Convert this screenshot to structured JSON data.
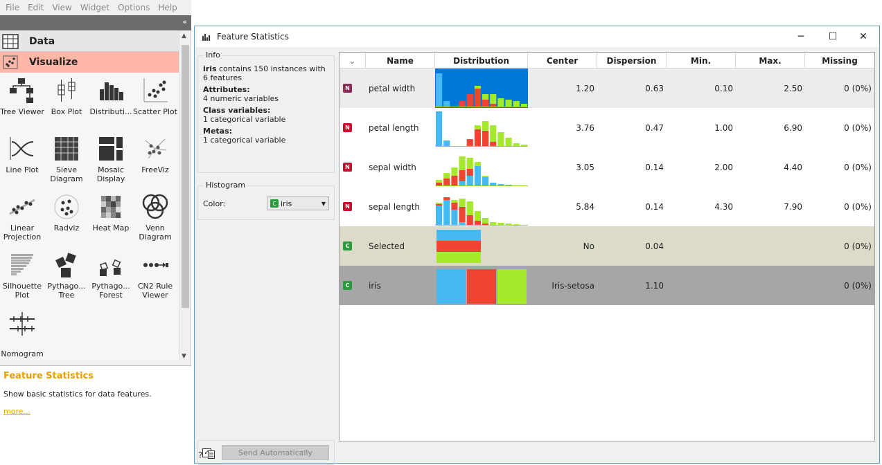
{
  "menubar": {
    "items": [
      "File",
      "Edit",
      "View",
      "Widget",
      "Options",
      "Help"
    ]
  },
  "left_panel": {
    "collapse_label": "«",
    "categories": [
      {
        "label": "Data",
        "icon": "table-icon"
      },
      {
        "label": "Visualize",
        "icon": "scatter-icon"
      }
    ],
    "widgets": [
      {
        "label": "Tree Viewer",
        "icon": "tree-viewer-icon"
      },
      {
        "label": "Box Plot",
        "icon": "box-plot-icon"
      },
      {
        "label": "Distributi...",
        "icon": "distributions-icon"
      },
      {
        "label": "Scatter Plot",
        "icon": "scatter-plot-icon"
      },
      {
        "label": "Line Plot",
        "icon": "line-plot-icon"
      },
      {
        "label": "Sieve Diagram",
        "icon": "sieve-diagram-icon"
      },
      {
        "label": "Mosaic Display",
        "icon": "mosaic-display-icon"
      },
      {
        "label": "FreeViz",
        "icon": "freeviz-icon"
      },
      {
        "label": "Linear Projection",
        "icon": "linear-projection-icon"
      },
      {
        "label": "Radviz",
        "icon": "radviz-icon"
      },
      {
        "label": "Heat Map",
        "icon": "heat-map-icon"
      },
      {
        "label": "Venn Diagram",
        "icon": "venn-diagram-icon"
      },
      {
        "label": "Silhouette Plot",
        "icon": "silhouette-plot-icon"
      },
      {
        "label": "Pythago... Tree",
        "icon": "pythagorean-tree-icon"
      },
      {
        "label": "Pythago... Forest",
        "icon": "pythagorean-forest-icon"
      },
      {
        "label": "CN2 Rule Viewer",
        "icon": "cn2-rule-viewer-icon"
      },
      {
        "label": "Nomogram",
        "icon": "nomogram-icon"
      }
    ],
    "description": {
      "title": "Feature Statistics",
      "text": "Show basic statistics for data features.",
      "link": "more..."
    }
  },
  "window": {
    "title": "Feature Statistics",
    "buttons": {
      "minimize": "─",
      "maximize": "☐",
      "close": "✕"
    },
    "info": {
      "title": "Info",
      "dataset": "iris",
      "summary_suffix": " contains 150 instances with 6 features",
      "attributes_label": "Attributes:",
      "attributes_value": "4 numeric variables",
      "class_label": "Class variables:",
      "class_value": "1 categorical variable",
      "metas_label": "Metas:",
      "metas_value": "1 categorical variable"
    },
    "histogram": {
      "title": "Histogram",
      "color_label": "Color:",
      "color_value": "iris",
      "color_badge": "C"
    },
    "send": {
      "checked": "✓",
      "label": "Send Automatically"
    },
    "status_icons": [
      "help-icon",
      "report-icon"
    ],
    "table": {
      "sort_indicator": "⌄",
      "headers": [
        "Name",
        "Distribution",
        "Center",
        "Dispersion",
        "Min.",
        "Max.",
        "Missing"
      ],
      "rows": [
        {
          "badge": "N",
          "badge_color": "#8b2a55",
          "name": "petal width",
          "center": "1.20",
          "dispersion": "0.63",
          "min": "0.10",
          "max": "2.50",
          "missing": "0 (0%)",
          "bg": "#ececec",
          "selected": true
        },
        {
          "badge": "N",
          "badge_color": "#c8102e",
          "name": "petal length",
          "center": "3.76",
          "dispersion": "0.47",
          "min": "1.00",
          "max": "6.90",
          "missing": "0 (0%)",
          "bg": "#ffffff",
          "selected": false
        },
        {
          "badge": "N",
          "badge_color": "#c8102e",
          "name": "sepal width",
          "center": "3.05",
          "dispersion": "0.14",
          "min": "2.00",
          "max": "4.40",
          "missing": "0 (0%)",
          "bg": "#ffffff",
          "selected": false
        },
        {
          "badge": "N",
          "badge_color": "#c8102e",
          "name": "sepal length",
          "center": "5.84",
          "dispersion": "0.14",
          "min": "4.30",
          "max": "7.90",
          "missing": "0 (0%)",
          "bg": "#ffffff",
          "selected": false
        },
        {
          "badge": "C",
          "badge_color": "#2a9a3c",
          "name": "Selected",
          "center": "No",
          "dispersion": "0.04",
          "min": "",
          "max": "",
          "missing": "0 (0%)",
          "bg": "#dcdbc9",
          "selected": false
        },
        {
          "badge": "C",
          "badge_color": "#2a9a3c",
          "name": "iris",
          "center": "Iris-setosa",
          "dispersion": "1.10",
          "min": "",
          "max": "",
          "missing": "0 (0%)",
          "bg": "#a6a6a6",
          "selected": false
        }
      ]
    },
    "colors": {
      "setosa": "#47b9f2",
      "versicolor": "#ef4433",
      "virginica": "#a5e82c",
      "selection": "#0078d7"
    }
  }
}
